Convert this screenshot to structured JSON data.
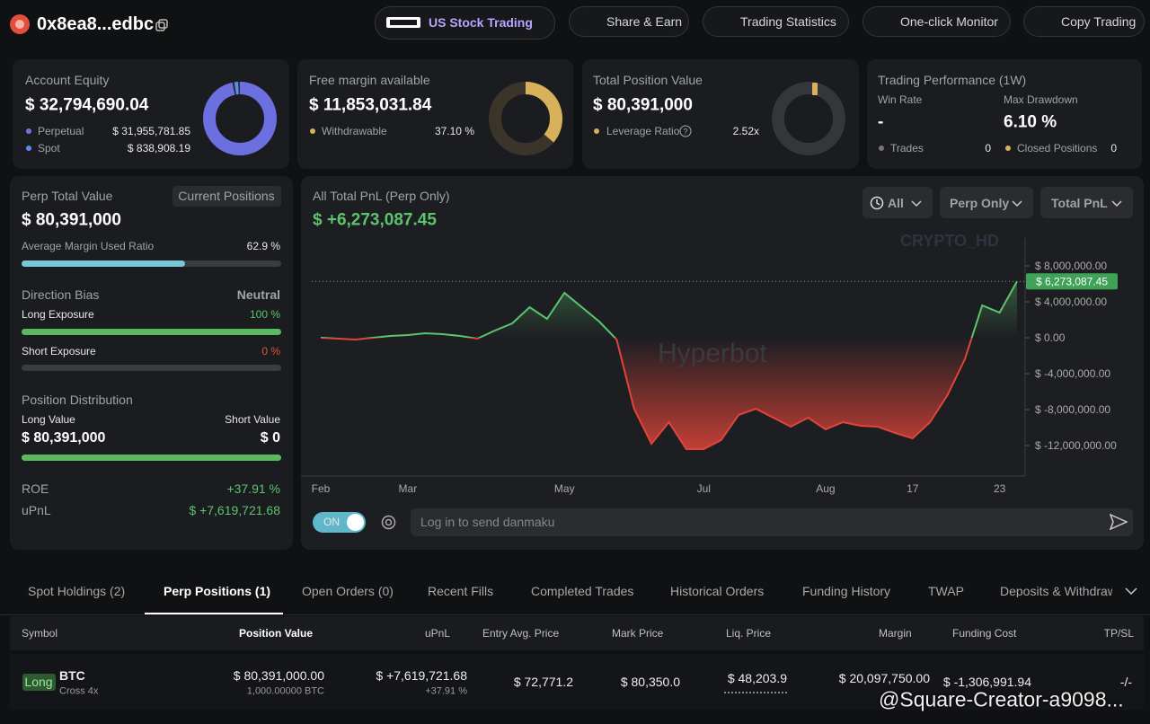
{
  "header": {
    "account": "0x8ea8...edbc",
    "nav": [
      "US Stock Trading",
      "Share & Earn",
      "Trading Statistics",
      "One-click Monitor",
      "Copy Trading"
    ]
  },
  "summary": {
    "equity": {
      "label": "Account Equity",
      "value": "$ 32,794,690.04",
      "rows": [
        {
          "label": "Perpetual",
          "value": "$ 31,955,781.85"
        },
        {
          "label": "Spot",
          "value": "$ 838,908.19"
        }
      ]
    },
    "free_margin": {
      "label": "Free margin available",
      "value": "$ 11,853,031.84",
      "row": {
        "label": "Withdrawable",
        "value": "37.10 %"
      }
    },
    "position": {
      "label": "Total Position Value",
      "value": "$ 80,391,000",
      "row": {
        "label": "Leverage Ratio",
        "value": "2.52x"
      }
    },
    "performance": {
      "title": "Trading Performance (1W)",
      "win_rate": {
        "label": "Win Rate",
        "value": "-"
      },
      "max_drawdown": {
        "label": "Max Drawdown",
        "value": "6.10 %"
      },
      "trades": {
        "label": "Trades",
        "value": "0"
      },
      "closed": {
        "label": "Closed Positions",
        "value": "0"
      }
    }
  },
  "perp": {
    "label": "Perp Total Value",
    "button": "Current Positions",
    "value": "$ 80,391,000",
    "margin_ratio": {
      "label": "Average Margin Used Ratio",
      "value": "62.9 %"
    },
    "bias": {
      "label": "Direction Bias",
      "value": "Neutral"
    },
    "long_exposure": {
      "label": "Long Exposure",
      "value": "100 %"
    },
    "short_exposure": {
      "label": "Short Exposure",
      "value": "0 %"
    },
    "distribution": {
      "title": "Position Distribution",
      "long_label": "Long Value",
      "short_label": "Short Value",
      "long_value": "$ 80,391,000",
      "short_value": "$ 0"
    },
    "roe": {
      "label": "ROE",
      "value": "+37.91 %"
    },
    "upnl": {
      "label": "uPnL",
      "value": "$ +7,619,721.68"
    }
  },
  "chart_data": {
    "type": "line",
    "title": "All Total PnL (Perp Only)",
    "total": "$ +6,273,087.45",
    "filters": [
      "All",
      "Perp Only",
      "Total PnL"
    ],
    "watermarks": [
      "CRYPTO_HD",
      "Hyperbot"
    ],
    "categories": [
      "Feb",
      null,
      null,
      null,
      null,
      "Mar",
      null,
      null,
      null,
      null,
      null,
      null,
      null,
      null,
      "May",
      null,
      null,
      null,
      null,
      null,
      null,
      null,
      "Jul",
      null,
      null,
      null,
      null,
      null,
      null,
      "Aug",
      null,
      null,
      null,
      null,
      "17",
      null,
      null,
      null,
      null,
      "23",
      null
    ],
    "values": [
      0,
      -100000,
      -200000,
      0,
      200000,
      300000,
      500000,
      400000,
      200000,
      -100000,
      800000,
      1600000,
      3400000,
      2100000,
      5000000,
      3400000,
      1800000,
      -200000,
      -7900000,
      -11800000,
      -9400000,
      -12400000,
      -12400000,
      -11400000,
      -8600000,
      -7900000,
      -8900000,
      -9900000,
      -8900000,
      -10200000,
      -9400000,
      -9800000,
      -9900000,
      -10600000,
      -11200000,
      -9400000,
      -6400000,
      -2400000,
      3600000,
      2800000,
      6273087.45
    ],
    "value_label": "$ 6,273,087.45",
    "color_up": "#5cc46e",
    "color_down": "#e0443a",
    "ylim": [
      -15400000,
      11100000
    ],
    "yticks": [
      {
        "value": 8000000,
        "label": "$ 8,000,000.00"
      },
      {
        "value": 4000000,
        "label": "$ 4,000,000.00"
      },
      {
        "value": 0,
        "label": "$ 0.00"
      },
      {
        "value": -4000000,
        "label": "$ -4,000,000.00"
      },
      {
        "value": -8000000,
        "label": "$ -8,000,000.00"
      },
      {
        "value": -12000000,
        "label": "$ -12,000,000.00"
      }
    ]
  },
  "danmaku": {
    "toggle": "ON",
    "placeholder": "Log in to send danmaku"
  },
  "tabs": {
    "items": [
      "Spot Holdings (2)",
      "Perp Positions (1)",
      "Open Orders (0)",
      "Recent Fills",
      "Completed Trades",
      "Historical Orders",
      "Funding History",
      "TWAP",
      "Deposits & Withdraw"
    ],
    "active": 1
  },
  "table": {
    "columns": [
      "Symbol",
      "Position Value",
      "uPnL",
      "Entry Avg. Price",
      "Mark Price",
      "Liq. Price",
      "Margin",
      "Funding Cost",
      "TP/SL"
    ],
    "rows": [
      {
        "side": "Long",
        "symbol": "BTC",
        "mode": "Cross 4x",
        "position_value": "$ 80,391,000.00",
        "size": "1,000.00000 BTC",
        "upnl": "$ +7,619,721.68",
        "roe": "+37.91 %",
        "entry": "$ 72,771.2",
        "mark": "$ 80,350.0",
        "liq": "$ 48,203.9",
        "margin": "$ 20,097,750.00",
        "funding": "$ -1,306,991.94",
        "tpsl": "-/-"
      }
    ]
  },
  "watermark": "@Square-Creator-a9098..."
}
